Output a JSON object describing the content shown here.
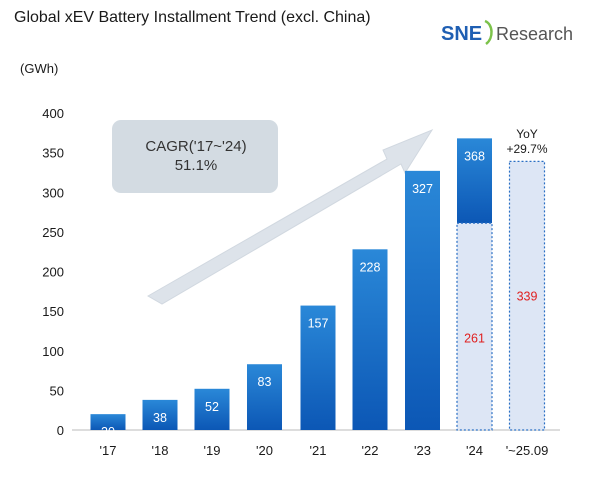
{
  "header": {
    "title": "Global xEV Battery Installment Trend (excl. China)",
    "logo_sne": "SNE",
    "logo_research": "Research"
  },
  "colors": {
    "bar_top": "#2a88d8",
    "bar_bottom": "#0c57b5",
    "dotted_fill": "#dde6f5",
    "dotted_stroke": "#2a6fc4",
    "arrow": "#dde3ea",
    "cagr_box": "#d3dbe2",
    "red_label": "#e02020"
  },
  "chart_data": {
    "type": "bar",
    "unit_label": "(GWh)",
    "ylim": [
      0,
      400
    ],
    "yticks": [
      0,
      50,
      100,
      150,
      200,
      250,
      300,
      350,
      400
    ],
    "categories": [
      "'17",
      "'18",
      "'19",
      "'20",
      "'21",
      "'22",
      "'23",
      "'24",
      "'~25.09"
    ],
    "values": [
      20,
      38,
      52,
      83,
      157,
      228,
      327,
      368,
      339
    ],
    "value_labels": [
      "20",
      "38",
      "52",
      "83",
      "157",
      "228",
      "327",
      "368",
      "339"
    ],
    "partial_2024": {
      "category": "'24",
      "value": 261,
      "label": "261"
    },
    "cagr": {
      "line1": "CAGR('17~'24)",
      "line2": "51.1%"
    },
    "yoy": {
      "line1": "YoY",
      "line2": "+29.7%"
    },
    "grid": false
  }
}
